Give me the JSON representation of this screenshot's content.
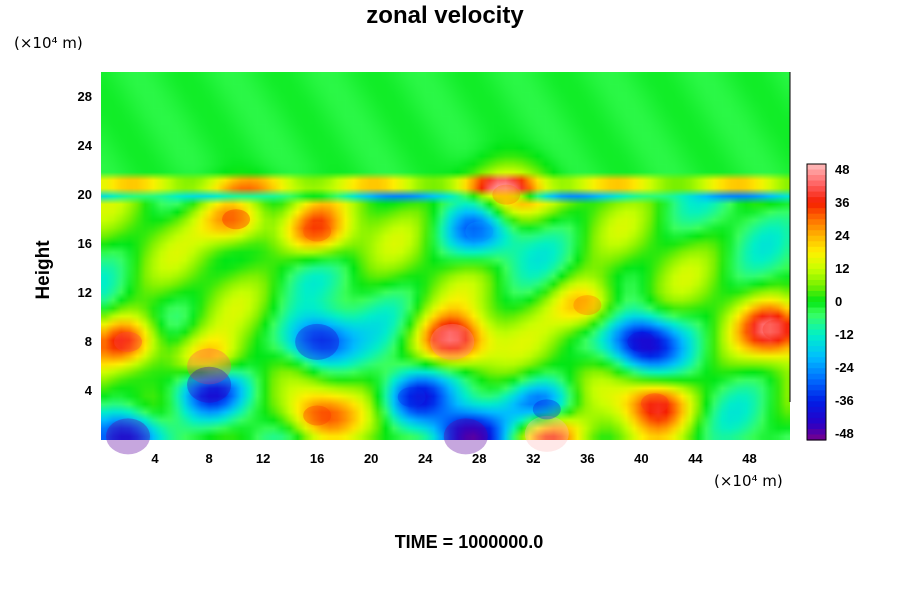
{
  "chart_data": {
    "type": "heatmap",
    "title": "zonal velocity",
    "ylabel": "Height",
    "xlabel": "",
    "y_unit": "(×10⁴ m)",
    "x_unit": "(×10⁴ m)",
    "xlim": [
      0,
      51
    ],
    "ylim": [
      0,
      30
    ],
    "x_ticks": [
      "4",
      "8",
      "12",
      "16",
      "20",
      "24",
      "28",
      "32",
      "36",
      "40",
      "44",
      "48"
    ],
    "y_ticks": [
      "4",
      "8",
      "12",
      "16",
      "20",
      "24",
      "28"
    ],
    "colorbar_range": [
      -50,
      50
    ],
    "colorbar_ticks": [
      "48",
      "36",
      "24",
      "12",
      "0",
      "-12",
      "-24",
      "-36",
      "-48"
    ],
    "features": [
      {
        "x": 2,
        "y": 8,
        "value": 40
      },
      {
        "x": 16,
        "y": 8,
        "value": -42
      },
      {
        "x": 26,
        "y": 8,
        "value": 46
      },
      {
        "x": 40,
        "y": 8,
        "value": -40
      },
      {
        "x": 50,
        "y": 9,
        "value": 38
      },
      {
        "x": 10,
        "y": 18,
        "value": 36
      },
      {
        "x": 16,
        "y": 17,
        "value": 32
      },
      {
        "x": 8,
        "y": 6,
        "value": 42
      },
      {
        "x": 8,
        "y": 4.5,
        "value": -45
      },
      {
        "x": 16,
        "y": 2,
        "value": 34
      },
      {
        "x": 23,
        "y": 3.5,
        "value": -34
      },
      {
        "x": 33,
        "y": 0.5,
        "value": 50
      },
      {
        "x": 41,
        "y": 3,
        "value": 38
      },
      {
        "x": 2,
        "y": 0.3,
        "value": -48
      },
      {
        "x": 27,
        "y": 0.3,
        "value": -48
      },
      {
        "x": 33,
        "y": 2.5,
        "value": -38
      },
      {
        "x": 28,
        "y": 17,
        "value": -24
      },
      {
        "x": 36,
        "y": 11,
        "value": 30
      },
      {
        "x": 30,
        "y": 20,
        "value": 30
      }
    ]
  },
  "footer": {
    "time_label": "TIME = 1000000.0"
  }
}
